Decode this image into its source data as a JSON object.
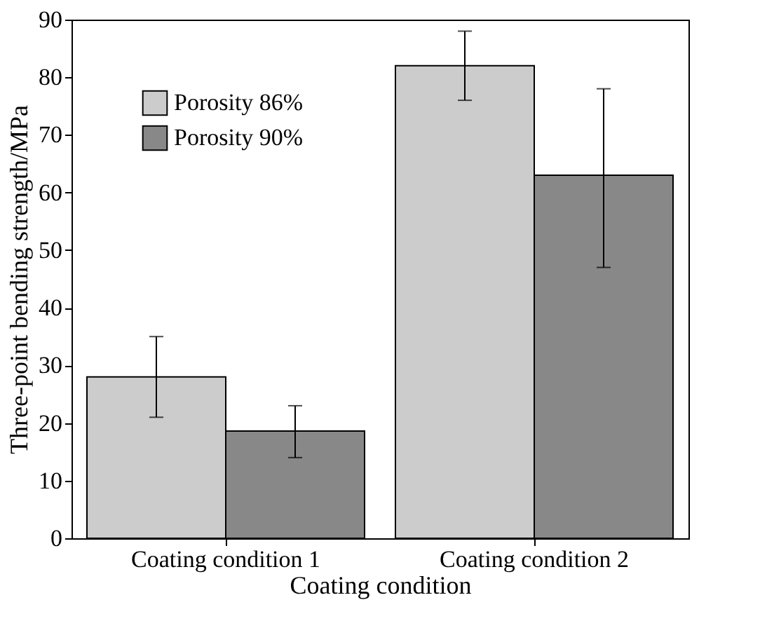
{
  "chart_data": {
    "type": "bar",
    "xlabel": "Coating condition",
    "ylabel": "Three-point bending strength/MPa",
    "categories": [
      "Coating condition 1",
      "Coating condition 2"
    ],
    "series": [
      {
        "name": "Porosity 86%",
        "color": "#cccccc",
        "values": [
          28,
          82
        ],
        "errors": [
          [
            21,
            35
          ],
          [
            76,
            88
          ]
        ]
      },
      {
        "name": "Porosity 90%",
        "color": "#888888",
        "values": [
          18.6,
          63
        ],
        "errors": [
          [
            14,
            23
          ],
          [
            47,
            78
          ]
        ]
      }
    ],
    "ylim": [
      0,
      90
    ],
    "yticks": [
      0,
      10,
      20,
      30,
      40,
      50,
      60,
      70,
      80,
      90
    ],
    "grid": false,
    "legend": "top left"
  }
}
